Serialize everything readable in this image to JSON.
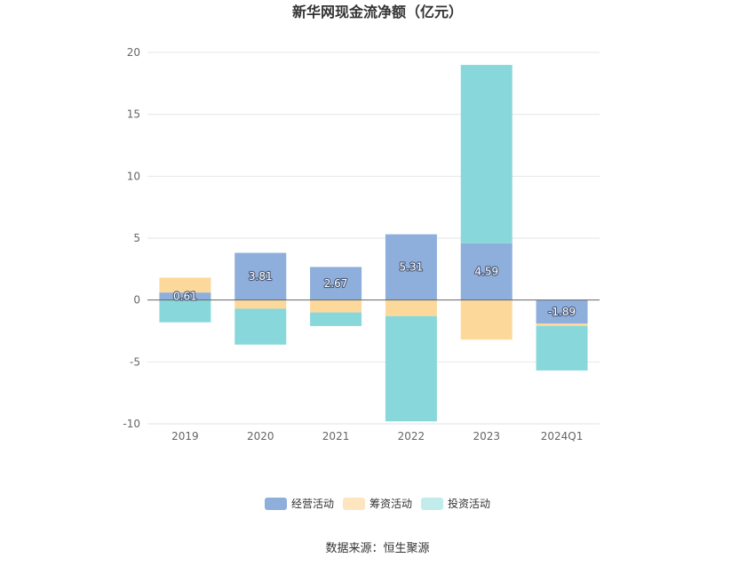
{
  "chart_data": {
    "type": "bar",
    "stacked": true,
    "title": "新华网现金流净额（亿元）",
    "categories": [
      "2019",
      "2020",
      "2021",
      "2022",
      "2023",
      "2024Q1"
    ],
    "series": [
      {
        "name": "经营活动",
        "color": "#8eaedc",
        "values": [
          0.61,
          3.81,
          2.67,
          5.31,
          4.59,
          -1.89
        ]
      },
      {
        "name": "筹资活动",
        "color": "#fdd89b",
        "values": [
          1.2,
          -0.7,
          -1.0,
          -1.3,
          -3.2,
          -0.2
        ]
      },
      {
        "name": "投资活动",
        "color": "#88d8db",
        "values": [
          -1.8,
          -2.9,
          -1.1,
          -8.5,
          14.4,
          -3.6
        ]
      }
    ],
    "data_labels": [
      "0.61",
      "3.81",
      "2.67",
      "5.31",
      "4.59",
      "-1.89"
    ],
    "ylim": [
      -10,
      20
    ],
    "yticks": [
      "20",
      "15",
      "10",
      "5",
      "0",
      "-5",
      "-10"
    ],
    "grid": true,
    "legend_position": "bottom",
    "source": "数据来源：恒生聚源"
  }
}
